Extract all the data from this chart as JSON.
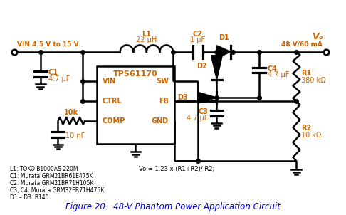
{
  "title": "Figure 20.  48-V Phantom Power Application Circuit",
  "bg_color": "#ffffff",
  "line_color": "#000000",
  "orange_color": "#cc6600",
  "blue_color": "#0000cc",
  "labels": {
    "VIN": "VIN 4.5 V to 15 V",
    "VO": "Vₒ",
    "VO2": "48 V/60 mA",
    "L1": "L1",
    "L1val": "22 μH",
    "C2": "C2",
    "C2val": "1 μF",
    "D1": "D1",
    "C1": "C1",
    "C1val": "4.7 μF",
    "IC": "TPS61170",
    "VIN_pin": "VIN",
    "SW_pin": "SW",
    "CTRL_pin": "CTRL",
    "FB_pin": "FB",
    "COMP_pin": "COMP",
    "GND_pin": "GND",
    "D2": "D2",
    "D3": "D3",
    "C4": "C4",
    "C4val": "4.7 μF",
    "C3": "C3",
    "C3val": "4.7 μF",
    "R1": "R1",
    "R1val": "380 kΩ",
    "R2": "R2",
    "R2val": "10 kΩ",
    "R_10k": "10k",
    "C_10nF": "10 nF",
    "note1": "L1: TOKO B1000AS-220M",
    "note2": "C1: Murata GRM21BR61E475K",
    "note3": "C2: Murata GRM21BR71H105K",
    "note4": "C3, C4: Murata GRM32ER71H475K",
    "note5": "D1 – D3: B140",
    "formula": "Vo = 1.23 x (R1+R2)/ R2;"
  }
}
